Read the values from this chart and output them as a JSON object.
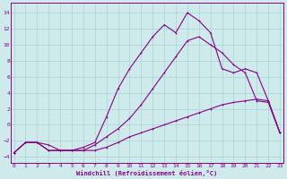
{
  "xlabel": "Windchill (Refroidissement éolien,°C)",
  "bg_color": "#ceeaea",
  "line_color": "#880088",
  "grid_color": "#add8d8",
  "x_ticks": [
    0,
    1,
    2,
    3,
    4,
    5,
    6,
    7,
    8,
    9,
    10,
    11,
    12,
    13,
    14,
    15,
    16,
    17,
    18,
    19,
    20,
    21,
    22,
    23
  ],
  "y_ticks": [
    -4,
    -2,
    0,
    2,
    4,
    6,
    8,
    10,
    12,
    14
  ],
  "ylim": [
    -4.8,
    15.2
  ],
  "xlim": [
    -0.3,
    23.3
  ],
  "curve1_x": [
    0,
    1,
    2,
    3,
    4,
    5,
    6,
    7,
    8,
    9,
    10,
    11,
    12,
    13,
    14,
    15,
    16,
    17,
    18,
    19,
    20,
    21,
    22,
    23
  ],
  "curve1_y": [
    -3.5,
    -2.2,
    -2.2,
    -3.2,
    -3.2,
    -3.2,
    -3.2,
    -3.2,
    -2.8,
    -2.2,
    -1.5,
    -1.0,
    -0.5,
    0.0,
    0.5,
    1.0,
    1.5,
    2.0,
    2.5,
    2.8,
    3.0,
    3.2,
    3.0,
    -1.0
  ],
  "curve2_x": [
    0,
    1,
    2,
    3,
    4,
    5,
    6,
    7,
    8,
    9,
    10,
    11,
    12,
    13,
    14,
    15,
    16,
    17,
    18,
    19,
    20,
    21,
    22,
    23
  ],
  "curve2_y": [
    -3.5,
    -2.2,
    -2.2,
    -3.2,
    -3.2,
    -3.2,
    -3.2,
    -2.5,
    -1.5,
    -0.5,
    0.8,
    2.5,
    4.5,
    6.5,
    8.5,
    10.5,
    11.0,
    10.0,
    9.0,
    7.5,
    6.5,
    3.0,
    2.8,
    -1.0
  ],
  "curve3_x": [
    0,
    1,
    2,
    3,
    4,
    5,
    6,
    7,
    8,
    9,
    10,
    11,
    12,
    13,
    14,
    15,
    16,
    17,
    18,
    19,
    20,
    21,
    22,
    23
  ],
  "curve3_y": [
    -3.5,
    -2.2,
    -2.2,
    -2.5,
    -3.2,
    -3.2,
    -2.8,
    -2.2,
    1.0,
    4.5,
    7.0,
    9.0,
    11.0,
    12.5,
    11.5,
    14.0,
    13.0,
    11.5,
    7.0,
    6.5,
    7.0,
    6.5,
    3.0,
    -1.0
  ]
}
